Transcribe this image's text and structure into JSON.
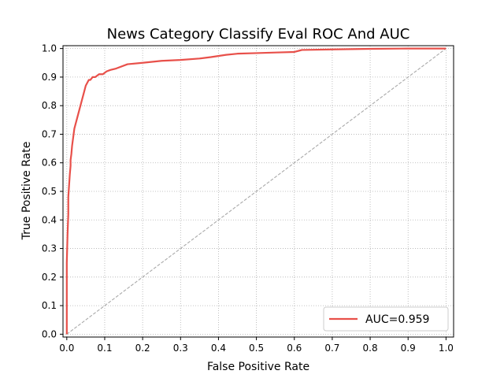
{
  "chart_data": {
    "type": "line",
    "title": "News Category Classify Eval ROC And AUC",
    "xlabel": "False Positive Rate",
    "ylabel": "True Positive Rate",
    "xlim": [
      -0.01,
      1.02
    ],
    "ylim": [
      -0.01,
      1.01
    ],
    "xticks": [
      0.0,
      0.1,
      0.2,
      0.3,
      0.4,
      0.5,
      0.6,
      0.7,
      0.8,
      0.9,
      1.0
    ],
    "yticks": [
      0.0,
      0.1,
      0.2,
      0.3,
      0.4,
      0.5,
      0.6,
      0.7,
      0.8,
      0.9,
      1.0
    ],
    "xtick_labels": [
      "0.0",
      "0.1",
      "0.2",
      "0.3",
      "0.4",
      "0.5",
      "0.6",
      "0.7",
      "0.8",
      "0.9",
      "1.0"
    ],
    "ytick_labels": [
      "0.0",
      "0.1",
      "0.2",
      "0.3",
      "0.4",
      "0.5",
      "0.6",
      "0.7",
      "0.8",
      "0.9",
      "1.0"
    ],
    "grid": true,
    "legend_position": "lower-right",
    "series": [
      {
        "name": "AUC=0.959",
        "color": "#e8504a",
        "style": "solid",
        "x": [
          0.0,
          0.0,
          0.002,
          0.004,
          0.004,
          0.006,
          0.008,
          0.01,
          0.01,
          0.012,
          0.014,
          0.016,
          0.018,
          0.02,
          0.022,
          0.026,
          0.03,
          0.034,
          0.038,
          0.042,
          0.046,
          0.05,
          0.054,
          0.058,
          0.062,
          0.068,
          0.075,
          0.085,
          0.095,
          0.105,
          0.115,
          0.13,
          0.16,
          0.2,
          0.25,
          0.3,
          0.35,
          0.38,
          0.42,
          0.45,
          0.5,
          0.55,
          0.6,
          0.62,
          0.7,
          0.75,
          0.8,
          0.9,
          1.0
        ],
        "y": [
          0.0,
          0.25,
          0.35,
          0.42,
          0.48,
          0.52,
          0.56,
          0.59,
          0.61,
          0.63,
          0.66,
          0.68,
          0.7,
          0.72,
          0.73,
          0.75,
          0.77,
          0.79,
          0.81,
          0.83,
          0.85,
          0.87,
          0.88,
          0.89,
          0.89,
          0.9,
          0.9,
          0.91,
          0.91,
          0.92,
          0.925,
          0.93,
          0.945,
          0.95,
          0.957,
          0.96,
          0.965,
          0.97,
          0.978,
          0.982,
          0.984,
          0.986,
          0.988,
          0.995,
          0.997,
          0.998,
          0.999,
          1.0,
          1.0
        ]
      },
      {
        "name": "",
        "color": "#a9a9a9",
        "style": "dashed",
        "x": [
          0.0,
          1.0
        ],
        "y": [
          0.0,
          1.0
        ]
      }
    ]
  }
}
